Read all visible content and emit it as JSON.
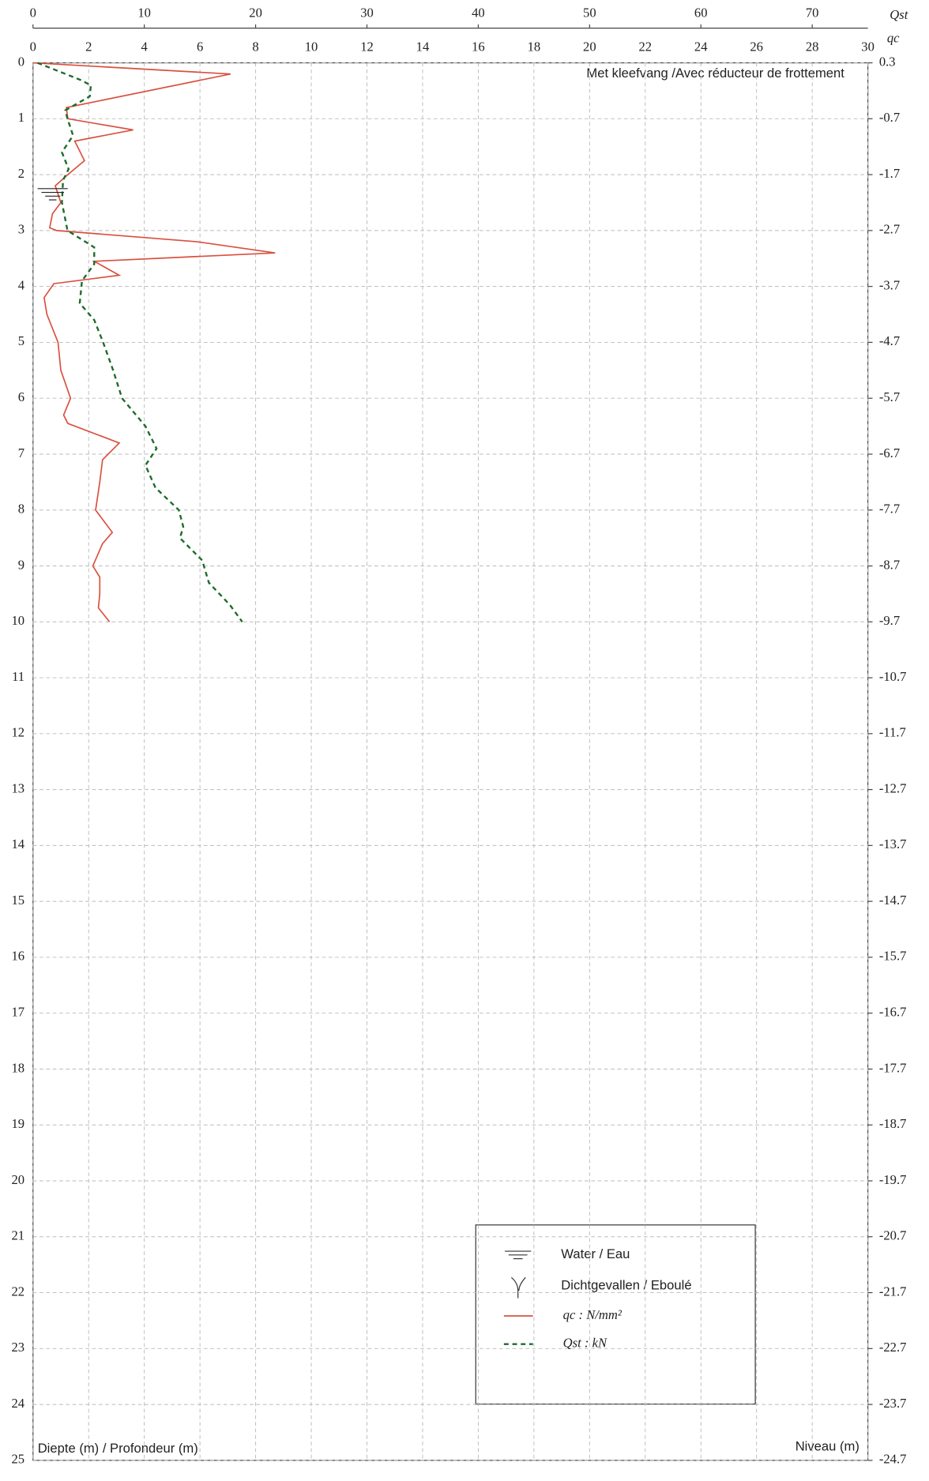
{
  "chart_data": {
    "type": "line",
    "annotation": "Met kleefvang /Avec réducteur de frottement",
    "ylabel": "Diepte (m) / Profondeur (m)",
    "y2label": "Niveau (m)",
    "xlabel": "qc",
    "x2label": "Qst",
    "xlim": [
      0,
      30
    ],
    "xticks": [
      0,
      2,
      4,
      6,
      8,
      10,
      12,
      14,
      16,
      18,
      20,
      22,
      24,
      26,
      28,
      30
    ],
    "x2lim": [
      0,
      75
    ],
    "x2ticks": [
      0,
      10,
      20,
      30,
      40,
      50,
      60,
      70
    ],
    "ylim": [
      0,
      25
    ],
    "yticks": [
      0,
      1,
      2,
      3,
      4,
      5,
      6,
      7,
      8,
      9,
      10,
      11,
      12,
      13,
      14,
      15,
      16,
      17,
      18,
      19,
      20,
      21,
      22,
      23,
      24,
      25
    ],
    "y2lim": [
      0.3,
      -24.7
    ],
    "y2ticks": [
      0.3,
      -0.7,
      -1.7,
      -2.7,
      -3.7,
      -4.7,
      -5.7,
      -6.7,
      -7.7,
      -8.7,
      -9.7,
      -10.7,
      -11.7,
      -12.7,
      -13.7,
      -14.7,
      -15.7,
      -16.7,
      -17.7,
      -18.7,
      -19.7,
      -20.7,
      -21.7,
      -22.7,
      -23.7,
      -24.7
    ],
    "grid": true,
    "water_level": 2.25,
    "symbols": [
      "Water / Eau",
      "Dichtgevallen / Eboulé"
    ],
    "series": [
      {
        "name": "qc : N/mm²",
        "color": "#d9503f",
        "dash": false,
        "depth": [
          0,
          0.2,
          0.8,
          1.0,
          1.2,
          1.4,
          1.75,
          2.0,
          2.2,
          2.5,
          2.7,
          2.95,
          3.0,
          3.2,
          3.4,
          3.55,
          3.8,
          3.95,
          4.2,
          4.5,
          5.0,
          5.5,
          6.0,
          6.3,
          6.45,
          6.8,
          7.1,
          7.5,
          8.0,
          8.4,
          8.6,
          9.0,
          9.2,
          9.5,
          9.75,
          10.0
        ],
        "values": [
          0,
          7.1,
          1.2,
          1.25,
          3.6,
          1.5,
          1.85,
          1.25,
          0.8,
          1.0,
          0.7,
          0.6,
          0.85,
          5.9,
          8.7,
          2.2,
          3.1,
          0.75,
          0.4,
          0.5,
          0.9,
          1.0,
          1.35,
          1.1,
          1.25,
          3.1,
          2.5,
          2.4,
          2.25,
          2.85,
          2.5,
          2.15,
          2.4,
          2.4,
          2.35,
          2.75
        ]
      },
      {
        "name": "Qst : kN",
        "color": "#1e6b2a",
        "dash": true,
        "axis": "x2",
        "depth": [
          0,
          0.3,
          0.4,
          0.6,
          0.85,
          1.0,
          1.3,
          1.6,
          1.9,
          2.1,
          2.5,
          3.0,
          3.3,
          3.6,
          3.9,
          4.3,
          4.6,
          5.0,
          5.5,
          6.0,
          6.5,
          6.9,
          7.2,
          7.6,
          8.0,
          8.3,
          8.5,
          8.9,
          9.3,
          9.7,
          10.0
        ],
        "values": [
          0.4,
          4.2,
          5.2,
          5.1,
          2.9,
          3.1,
          3.6,
          2.6,
          3.2,
          2.7,
          2.6,
          3.1,
          5.5,
          5.5,
          4.4,
          4.2,
          5.5,
          6.3,
          7.2,
          8.0,
          10.1,
          11.1,
          10.1,
          11.0,
          13.1,
          13.5,
          13.2,
          15.2,
          15.8,
          17.7,
          18.8
        ]
      }
    ]
  }
}
